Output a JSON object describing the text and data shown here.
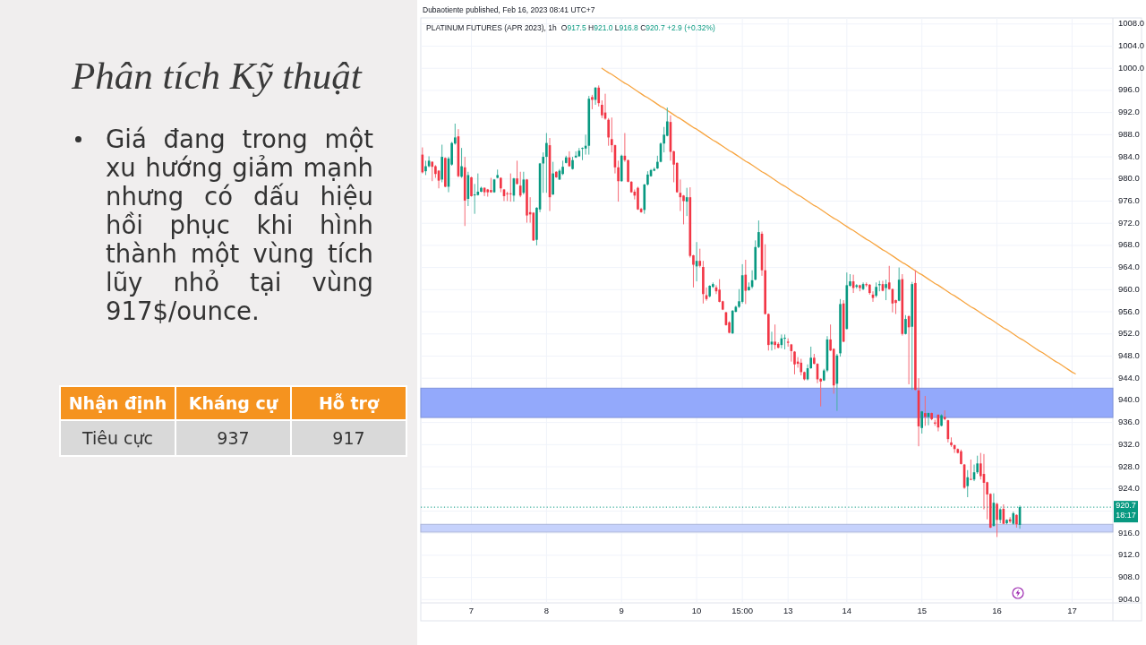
{
  "chart_data": [
    {
      "type": "other",
      "title": "Phân tích Kỹ thuật",
      "annotations": [
        "Giá đang trong một xu hướng giảm mạnh nhưng có dấu hiệu hồi phục khi hình thành một vùng tích lũy nhỏ tại vùng 917$/ounce.",
        "Nhận định",
        "Kháng cự",
        "Hỗ trợ",
        "Tiêu cực",
        "937",
        "917"
      ]
    },
    {
      "type": "candlestick",
      "title": "PLATINUM FUTURES (APR 2023), 1h",
      "subtitle": "O917.5 H921.0 L916.8 C920.7 +2.9 (+0.32%)",
      "annotations": [
        "Dubaotiente published, Feb 16, 2023 08:41 UTC+7",
        "18:17"
      ],
      "categories": [
        null,
        null,
        null,
        null,
        null,
        null,
        null,
        null,
        null,
        null,
        null,
        null,
        null,
        null,
        null,
        "7",
        null,
        null,
        null,
        null,
        null,
        null,
        null,
        null,
        null,
        null,
        null,
        null,
        null,
        null,
        null,
        null,
        null,
        null,
        null,
        null,
        null,
        null,
        "8",
        null,
        null,
        null,
        null,
        null,
        null,
        null,
        null,
        null,
        null,
        null,
        null,
        null,
        null,
        null,
        null,
        null,
        null,
        null,
        null,
        null,
        null,
        "9",
        null,
        null,
        null,
        null,
        null,
        null,
        null,
        null,
        null,
        null,
        null,
        null,
        null,
        null,
        null,
        null,
        null,
        null,
        null,
        null,
        null,
        null,
        "10",
        null,
        null,
        null,
        null,
        null,
        null,
        null,
        null,
        null,
        null,
        null,
        null,
        null,
        "15:00",
        null,
        null,
        null,
        null,
        null,
        null,
        null,
        null,
        null,
        null,
        null,
        null,
        null,
        "13",
        null,
        null,
        null,
        null,
        null,
        null,
        null,
        null,
        null,
        null,
        null,
        null,
        null,
        null,
        null,
        null,
        null,
        "14",
        null,
        null,
        null,
        null,
        null,
        null,
        null,
        null,
        null,
        null,
        null,
        null,
        null,
        null,
        null,
        null,
        null,
        null,
        null,
        null,
        null,
        null,
        "15",
        null,
        null,
        null,
        null,
        null,
        null,
        null,
        null,
        null,
        null,
        null,
        null,
        null,
        null,
        null,
        null,
        null,
        null,
        null,
        null,
        null,
        null,
        "16",
        null,
        null,
        null,
        null,
        null,
        null,
        null,
        null,
        null,
        null,
        null,
        null,
        null,
        null,
        null,
        null,
        null,
        null,
        null,
        null,
        null,
        null,
        "17",
        null,
        null,
        null,
        null,
        null,
        null,
        null,
        null,
        null,
        null,
        null,
        null
      ],
      "ohlc": [
        [
          984.4,
          985.7,
          981.0,
          981.2
        ],
        [
          981.4,
          983.3,
          980.7,
          982.3
        ],
        [
          982.3,
          984.1,
          982.1,
          983.3
        ],
        [
          983.1,
          983.2,
          979.6,
          982.2
        ],
        [
          982.3,
          982.5,
          980.2,
          980.9
        ],
        [
          981.5,
          981.6,
          978.3,
          979.7
        ],
        [
          979.9,
          986.2,
          979.4,
          984.0
        ],
        [
          983.8,
          983.9,
          978.5,
          978.6
        ],
        [
          978.6,
          984.0,
          977.6,
          983.7
        ],
        [
          982.6,
          986.7,
          982.4,
          986.5
        ],
        [
          986.4,
          990.0,
          986.2,
          987.5
        ],
        [
          987.7,
          989.0,
          980.3,
          980.5
        ],
        [
          980.4,
          985.6,
          980.2,
          982.3
        ],
        [
          982.1,
          984.0,
          971.5,
          976.1
        ],
        [
          976.4,
          981.3,
          975.1,
          980.7
        ],
        [
          980.3,
          980.4,
          976.8,
          976.9
        ],
        [
          977.1,
          979.1,
          973.7,
          977.2
        ],
        [
          977.1,
          981.0,
          977.0,
          977.7
        ],
        [
          977.7,
          978.6,
          977.6,
          978.4
        ],
        [
          978.4,
          978.5,
          976.9,
          977.6
        ],
        [
          978.1,
          978.2,
          976.8,
          977.6
        ],
        [
          978.0,
          980.2,
          977.5,
          977.6
        ],
        [
          977.6,
          980.0,
          977.5,
          979.9
        ],
        [
          980.2,
          981.7,
          980.1,
          980.7
        ],
        [
          980.2,
          980.3,
          977.6,
          978.3
        ],
        [
          978.1,
          978.2,
          976.0,
          976.9
        ],
        [
          977.4,
          977.7,
          976.0,
          977.3
        ],
        [
          977.4,
          981.0,
          975.9,
          977.3
        ],
        [
          977.0,
          980.2,
          975.9,
          980.1
        ],
        [
          980.1,
          983.3,
          979.0,
          979.1
        ],
        [
          978.8,
          981.3,
          976.7,
          977.0
        ],
        [
          977.5,
          981.3,
          977.2,
          979.9
        ],
        [
          979.9,
          980.0,
          972.1,
          973.4
        ],
        [
          974.0,
          976.7,
          972.1,
          973.6
        ],
        [
          973.9,
          974.0,
          968.8,
          968.9
        ],
        [
          969.0,
          974.9,
          968.0,
          974.8
        ],
        [
          974.5,
          982.9,
          974.0,
          982.8
        ],
        [
          982.8,
          984.8,
          977.5,
          984.0
        ],
        [
          984.0,
          988.3,
          977.5,
          986.5
        ],
        [
          986.1,
          987.4,
          974.2,
          976.7
        ],
        [
          977.2,
          983.1,
          977.1,
          981.0
        ],
        [
          981.3,
          981.4,
          980.2,
          980.3
        ],
        [
          979.9,
          981.8,
          979.8,
          981.5
        ],
        [
          980.9,
          983.3,
          980.7,
          982.2
        ],
        [
          982.9,
          984.2,
          982.8,
          983.9
        ],
        [
          983.9,
          985.0,
          982.2,
          982.3
        ],
        [
          981.8,
          984.0,
          981.7,
          983.4
        ],
        [
          983.9,
          985.0,
          983.8,
          984.2
        ],
        [
          984.1,
          985.6,
          984.0,
          985.1
        ],
        [
          985.5,
          985.7,
          983.4,
          985.6
        ],
        [
          985.5,
          988.0,
          984.4,
          986.0
        ],
        [
          986.0,
          995.0,
          984.4,
          994.5
        ],
        [
          994.8,
          995.2,
          992.6,
          994.3
        ],
        [
          994.3,
          996.6,
          993.4,
          996.5
        ],
        [
          996.5,
          996.9,
          993.1,
          993.7
        ],
        [
          993.4,
          994.2,
          991.0,
          991.5
        ],
        [
          992.0,
          995.4,
          990.7,
          990.9
        ],
        [
          990.7,
          991.0,
          986.0,
          987.5
        ],
        [
          987.2,
          991.1,
          984.8,
          986.1
        ],
        [
          986.1,
          986.2,
          981.0,
          982.1
        ],
        [
          982.1,
          983.3,
          975.9,
          979.6
        ],
        [
          979.6,
          984.4,
          979.5,
          984.2
        ],
        [
          984.2,
          988.3,
          983.1,
          983.4
        ],
        [
          983.4,
          983.5,
          979.4,
          979.5
        ],
        [
          979.5,
          979.6,
          977.5,
          977.6
        ],
        [
          977.7,
          978.1,
          976.3,
          977.0
        ],
        [
          978.4,
          978.6,
          974.4,
          974.5
        ],
        [
          974.6,
          974.8,
          973.9,
          974.0
        ],
        [
          974.4,
          979.1,
          973.7,
          979.0
        ],
        [
          979.0,
          981.4,
          978.8,
          980.8
        ],
        [
          980.5,
          981.8,
          980.4,
          981.6
        ],
        [
          981.5,
          982.1,
          981.4,
          981.8
        ],
        [
          981.9,
          984.2,
          981.8,
          983.1
        ],
        [
          983.1,
          986.6,
          983.0,
          986.4
        ],
        [
          986.4,
          989.4,
          984.8,
          988.0
        ],
        [
          987.8,
          992.9,
          987.7,
          990.4
        ],
        [
          990.3,
          991.5,
          983.3,
          984.9
        ],
        [
          985.0,
          985.1,
          979.4,
          982.6
        ],
        [
          982.9,
          983.0,
          977.5,
          977.6
        ],
        [
          977.5,
          979.9,
          974.2,
          976.7
        ],
        [
          977.0,
          977.1,
          971.8,
          976.0
        ],
        [
          975.9,
          978.4,
          973.3,
          976.7
        ],
        [
          976.7,
          978.5,
          965.8,
          966.1
        ],
        [
          966.2,
          966.3,
          960.4,
          964.5
        ],
        [
          964.2,
          968.6,
          961.5,
          965.2
        ],
        [
          965.2,
          967.4,
          964.0,
          964.3
        ],
        [
          964.1,
          965.2,
          957.5,
          959.2
        ],
        [
          959.0,
          960.4,
          958.0,
          958.3
        ],
        [
          958.8,
          960.8,
          958.6,
          960.7
        ],
        [
          960.5,
          961.3,
          960.3,
          961.0
        ],
        [
          960.4,
          960.8,
          959.2,
          959.7
        ],
        [
          960.0,
          961.9,
          957.7,
          957.8
        ],
        [
          957.9,
          958.0,
          956.3,
          956.4
        ],
        [
          955.9,
          956.0,
          953.5,
          953.6
        ],
        [
          954.1,
          954.3,
          952.1,
          952.2
        ],
        [
          952.1,
          956.3,
          952.0,
          956.2
        ],
        [
          956.0,
          957.1,
          955.9,
          956.9
        ],
        [
          956.9,
          960.1,
          956.7,
          957.9
        ],
        [
          957.8,
          964.6,
          957.5,
          962.6
        ],
        [
          962.7,
          965.4,
          957.4,
          959.8
        ],
        [
          959.9,
          961.3,
          959.8,
          960.5
        ],
        [
          960.5,
          963.5,
          960.2,
          961.7
        ],
        [
          961.8,
          968.9,
          961.7,
          967.7
        ],
        [
          967.7,
          972.5,
          967.5,
          970.4
        ],
        [
          970.1,
          970.5,
          962.5,
          963.5
        ],
        [
          963.5,
          968.2,
          955.5,
          955.6
        ],
        [
          955.6,
          955.7,
          949.0,
          950.0
        ],
        [
          950.1,
          952.4,
          949.0,
          950.6
        ],
        [
          950.6,
          953.7,
          949.2,
          950.0
        ],
        [
          950.2,
          950.5,
          949.4,
          949.5
        ],
        [
          950.0,
          951.9,
          949.4,
          951.2
        ],
        [
          951.2,
          951.9,
          949.2,
          951.3
        ],
        [
          950.6,
          951.2,
          949.7,
          950.4
        ],
        [
          950.1,
          950.2,
          947.0,
          948.9
        ],
        [
          948.8,
          948.9,
          944.7,
          946.5
        ],
        [
          947.0,
          947.8,
          945.9,
          946.6
        ],
        [
          946.8,
          947.5,
          944.5,
          945.1
        ],
        [
          945.1,
          945.2,
          943.6,
          943.8
        ],
        [
          943.8,
          946.5,
          943.6,
          945.8
        ],
        [
          945.8,
          949.7,
          945.7,
          947.7
        ],
        [
          947.7,
          948.4,
          946.5,
          946.6
        ],
        [
          946.6,
          946.7,
          943.1,
          943.8
        ],
        [
          943.9,
          944.0,
          938.9,
          943.4
        ],
        [
          943.6,
          945.7,
          943.5,
          945.4
        ],
        [
          945.4,
          951.6,
          945.1,
          951.0
        ],
        [
          951.0,
          953.7,
          948.9,
          949.0
        ],
        [
          949.3,
          949.4,
          941.2,
          942.7
        ],
        [
          943.0,
          948.4,
          938.1,
          948.1
        ],
        [
          948.5,
          958.3,
          947.9,
          957.4
        ],
        [
          957.5,
          958.1,
          950.5,
          950.6
        ],
        [
          952.9,
          963.1,
          952.8,
          960.8
        ],
        [
          960.7,
          962.8,
          960.5,
          961.5
        ],
        [
          961.5,
          962.7,
          959.4,
          960.3
        ],
        [
          960.5,
          961.0,
          960.2,
          960.8
        ],
        [
          960.8,
          960.9,
          959.7,
          960.3
        ],
        [
          960.1,
          961.3,
          959.9,
          961.0
        ],
        [
          961.0,
          961.3,
          960.5,
          960.8
        ],
        [
          960.9,
          961.0,
          959.1,
          959.4
        ],
        [
          959.1,
          959.7,
          957.8,
          958.5
        ],
        [
          958.9,
          961.3,
          958.6,
          960.5
        ],
        [
          960.8,
          961.6,
          959.7,
          961.0
        ],
        [
          961.0,
          961.6,
          959.7,
          959.8
        ],
        [
          960.3,
          961.8,
          958.1,
          961.0
        ],
        [
          961.3,
          964.3,
          960.0,
          960.1
        ],
        [
          960.1,
          960.2,
          955.9,
          957.5
        ],
        [
          958.1,
          958.2,
          955.6,
          957.6
        ],
        [
          958.0,
          964.0,
          957.9,
          961.8
        ],
        [
          961.9,
          962.8,
          951.7,
          952.0
        ],
        [
          952.0,
          955.4,
          951.9,
          954.7
        ],
        [
          955.2,
          955.4,
          942.9,
          953.2
        ],
        [
          953.3,
          961.4,
          941.9,
          961.0
        ],
        [
          961.2,
          963.5,
          941.8,
          941.9
        ],
        [
          941.8,
          944.0,
          931.7,
          935.3
        ],
        [
          935.0,
          938.1,
          934.0,
          938.0
        ],
        [
          937.7,
          940.8,
          935.4,
          937.0
        ],
        [
          937.0,
          937.8,
          935.5,
          937.7
        ],
        [
          937.7,
          937.8,
          936.4,
          936.6
        ],
        [
          936.0,
          936.5,
          935.4,
          935.8
        ],
        [
          937.4,
          937.5,
          934.4,
          935.1
        ],
        [
          935.4,
          937.5,
          935.3,
          937.3
        ],
        [
          937.0,
          938.2,
          936.4,
          936.6
        ],
        [
          936.4,
          936.5,
          932.4,
          933.0
        ],
        [
          932.4,
          933.3,
          931.6,
          931.9
        ],
        [
          931.9,
          932.0,
          930.5,
          931.2
        ],
        [
          931.2,
          931.3,
          930.4,
          930.5
        ],
        [
          930.8,
          931.1,
          928.4,
          928.5
        ],
        [
          928.4,
          928.5,
          924.0,
          924.2
        ],
        [
          924.5,
          927.4,
          922.5,
          926.1
        ],
        [
          925.8,
          929.3,
          925.6,
          925.7
        ],
        [
          925.7,
          928.4,
          925.4,
          927.0
        ],
        [
          927.0,
          930.0,
          926.7,
          928.6
        ],
        [
          928.6,
          930.5,
          925.7,
          926.3
        ],
        [
          926.7,
          930.3,
          920.3,
          925.1
        ],
        [
          925.2,
          925.3,
          918.5,
          923.0
        ],
        [
          923.1,
          923.2,
          916.9,
          917.0
        ],
        [
          917.3,
          923.2,
          917.2,
          921.5
        ],
        [
          921.3,
          921.5,
          915.3,
          918.4
        ],
        [
          918.4,
          920.5,
          917.8,
          920.3
        ],
        [
          920.4,
          921.2,
          917.6,
          917.7
        ],
        [
          917.8,
          918.5,
          917.6,
          918.4
        ],
        [
          918.5,
          918.9,
          917.8,
          918.1
        ],
        [
          917.7,
          919.9,
          917.5,
          919.6
        ],
        [
          919.3,
          919.4,
          917.0,
          917.6
        ],
        [
          917.5,
          921.0,
          916.8,
          920.7
        ],
        null,
        null,
        null,
        null,
        null,
        null,
        null,
        null,
        null,
        null,
        null,
        null,
        null,
        null,
        null,
        null,
        null,
        null,
        null,
        null,
        null,
        null,
        null,
        null,
        null,
        null,
        null,
        null
      ],
      "series": [
        {
          "type": "line",
          "color": "#f7a541",
          "values": [
            null,
            null,
            null,
            null,
            null,
            null,
            null,
            null,
            null,
            null,
            null,
            null,
            null,
            null,
            null,
            null,
            null,
            null,
            null,
            null,
            null,
            null,
            null,
            null,
            null,
            null,
            null,
            null,
            null,
            null,
            null,
            null,
            null,
            null,
            null,
            null,
            null,
            null,
            null,
            null,
            null,
            null,
            null,
            null,
            null,
            null,
            null,
            null,
            null,
            null,
            null,
            null,
            null,
            null,
            null,
            1000.0,
            999.6,
            999.2,
            998.9,
            998.5,
            998.1,
            997.7,
            997.3,
            997.0,
            996.6,
            996.2,
            995.8,
            995.4,
            995.0,
            994.7,
            994.3,
            993.9,
            993.5,
            993.1,
            992.8,
            992.4,
            992.0,
            991.6,
            991.2,
            990.9,
            990.5,
            990.1,
            989.7,
            989.3,
            989.0,
            988.6,
            988.2,
            987.8,
            987.4,
            987.0,
            986.7,
            986.3,
            985.9,
            985.5,
            985.1,
            984.8,
            984.4,
            984.0,
            983.6,
            983.2,
            982.9,
            982.5,
            982.1,
            981.7,
            981.3,
            981.0,
            980.6,
            980.2,
            979.8,
            979.4,
            979.0,
            978.7,
            978.3,
            977.9,
            977.5,
            977.1,
            976.8,
            976.4,
            976.0,
            975.6,
            975.2,
            974.9,
            974.5,
            974.1,
            973.7,
            973.3,
            972.9,
            972.6,
            972.2,
            971.8,
            971.4,
            971.0,
            970.7,
            970.3,
            969.9,
            969.5,
            969.1,
            968.8,
            968.4,
            968.0,
            967.6,
            967.2,
            966.9,
            966.5,
            966.1,
            965.7,
            965.3,
            964.9,
            964.6,
            964.2,
            963.8,
            963.4,
            963.0,
            962.7,
            962.3,
            961.9,
            961.5,
            961.1,
            960.8,
            960.4,
            960.0,
            959.6,
            959.2,
            958.9,
            958.5,
            958.1,
            957.7,
            957.3,
            956.9,
            956.6,
            956.2,
            955.8,
            955.4,
            955.0,
            954.7,
            954.3,
            953.9,
            953.5,
            953.1,
            952.8,
            952.4,
            952.0,
            951.6,
            951.2,
            950.9,
            950.5,
            950.1,
            949.7,
            949.3,
            948.9,
            948.6,
            948.2,
            947.8,
            947.4,
            947.0,
            946.7,
            946.3,
            945.9,
            945.5,
            945.1,
            944.8,
            null,
            null,
            null,
            null,
            null,
            null,
            null,
            null,
            null,
            null,
            null
          ]
        }
      ],
      "bands": [
        {
          "axis": "y",
          "from": 936.9,
          "to": 942.2,
          "color": "#93a9fb"
        },
        {
          "axis": "y",
          "from": 916.2,
          "to": 917.6,
          "color": "#c6d2fc"
        }
      ],
      "ref_lines": [
        {
          "axis": "y",
          "value": 920.7,
          "label": "920.7",
          "color": "#089981",
          "line_style": "dotted"
        }
      ],
      "ylim": [
        903.4,
        1009.1
      ],
      "yticks": [
        {
          "value": 904,
          "label": "904.0"
        },
        {
          "value": 908,
          "label": "908.0"
        },
        {
          "value": 912,
          "label": "912.0"
        },
        {
          "value": 916,
          "label": "916.0"
        },
        {
          "value": 920,
          "label": null
        },
        {
          "value": 924,
          "label": "924.0"
        },
        {
          "value": 928,
          "label": "928.0"
        },
        {
          "value": 932,
          "label": "932.0"
        },
        {
          "value": 936,
          "label": "936.0"
        },
        {
          "value": 940,
          "label": "940.0"
        },
        {
          "value": 944,
          "label": "944.0"
        },
        {
          "value": 948,
          "label": "948.0"
        },
        {
          "value": 952,
          "label": "952.0"
        },
        {
          "value": 956,
          "label": "956.0"
        },
        {
          "value": 960,
          "label": "960.0"
        },
        {
          "value": 964,
          "label": "964.0"
        },
        {
          "value": 968,
          "label": "968.0"
        },
        {
          "value": 972,
          "label": "972.0"
        },
        {
          "value": 976,
          "label": "976.0"
        },
        {
          "value": 980,
          "label": "980.0"
        },
        {
          "value": 984,
          "label": "984.0"
        },
        {
          "value": 988,
          "label": "988.0"
        },
        {
          "value": 992,
          "label": "992.0"
        },
        {
          "value": 996,
          "label": "996.0"
        },
        {
          "value": 1000,
          "label": "1000.0"
        },
        {
          "value": 1004,
          "label": "1004.0"
        },
        {
          "value": 1008,
          "label": "1008.0"
        }
      ],
      "grid": true
    }
  ]
}
